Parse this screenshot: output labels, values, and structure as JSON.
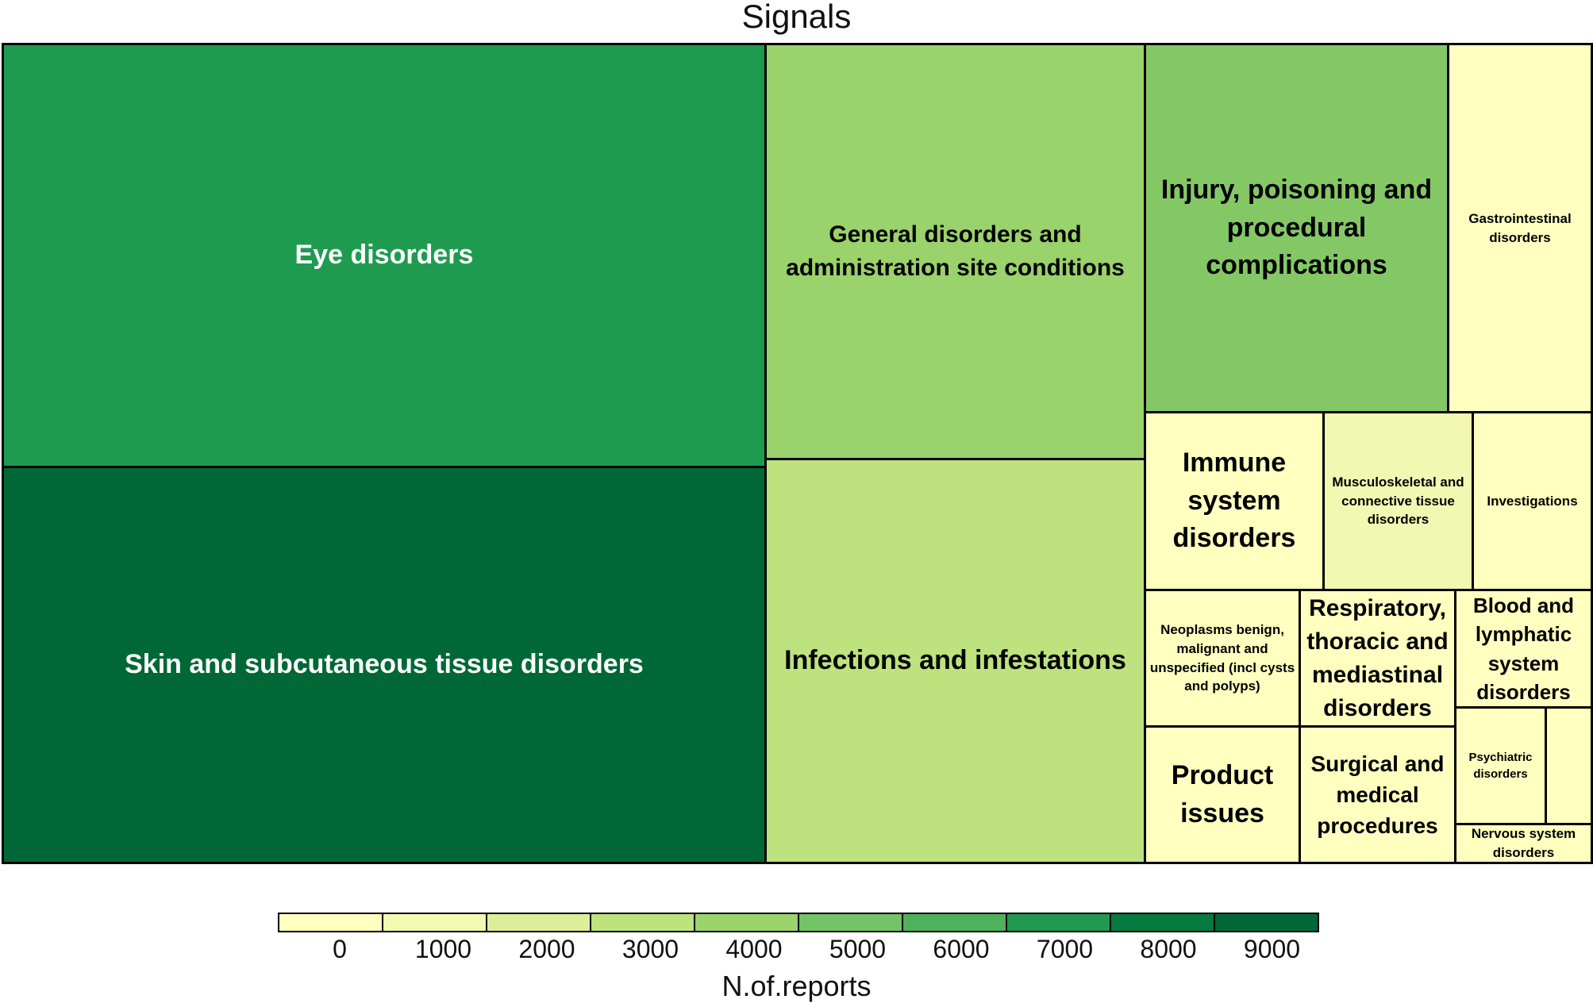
{
  "chart_data": {
    "type": "treemap",
    "title": "Signals",
    "color_scale": {
      "label": "N.of.reports",
      "ticks": [
        "0",
        "1000",
        "2000",
        "3000",
        "4000",
        "5000",
        "6000",
        "7000",
        "8000",
        "9000"
      ],
      "colors": [
        "#ffffc0",
        "#f2f9b3",
        "#dbef9a",
        "#bde27e",
        "#9bd36c",
        "#74c366",
        "#4fb15b",
        "#22994e",
        "#067a3f",
        "#006837"
      ]
    },
    "tiles": [
      {
        "label": "Eye disorders",
        "reports": 7000,
        "color": "#1e9b4f",
        "text_color": "#ffffff"
      },
      {
        "label": "Skin and subcutaneous tissue disorders",
        "reports": 9000,
        "color": "#006837",
        "text_color": "#ffffff"
      },
      {
        "label": "General disorders and administration site conditions",
        "reports": 3800,
        "color": "#9ad26b",
        "text_color": "#000000"
      },
      {
        "label": "Infections and infestations",
        "reports": 2900,
        "color": "#bde27e",
        "text_color": "#000000"
      },
      {
        "label": "Injury, poisoning and procedural complications",
        "reports": 4300,
        "color": "#84c866",
        "text_color": "#000000"
      },
      {
        "label": "Gastrointestinal disorders",
        "reports": 100,
        "color": "#ffffc0",
        "text_color": "#000000"
      },
      {
        "label": "Immune system disorders",
        "reports": 100,
        "color": "#ffffc0",
        "text_color": "#000000"
      },
      {
        "label": "Musculoskeletal and connective tissue disorders",
        "reports": 900,
        "color": "#f1f8b2",
        "text_color": "#000000"
      },
      {
        "label": "Investigations",
        "reports": 100,
        "color": "#ffffc0",
        "text_color": "#000000"
      },
      {
        "label": "Neoplasms benign, malignant and unspecified (incl cysts and polyps)",
        "reports": 100,
        "color": "#ffffc0",
        "text_color": "#000000"
      },
      {
        "label": "Respiratory, thoracic and mediastinal disorders",
        "reports": 100,
        "color": "#ffffc0",
        "text_color": "#000000"
      },
      {
        "label": "Blood and lymphatic system disorders",
        "reports": 100,
        "color": "#ffffc0",
        "text_color": "#000000"
      },
      {
        "label": "Product issues",
        "reports": 100,
        "color": "#ffffc0",
        "text_color": "#000000"
      },
      {
        "label": "Surgical and medical procedures",
        "reports": 100,
        "color": "#ffffc0",
        "text_color": "#000000"
      },
      {
        "label": "Psychiatric disorders",
        "reports": 100,
        "color": "#ffffc0",
        "text_color": "#000000"
      },
      {
        "label": "",
        "reports": 100,
        "color": "#ffffc0",
        "text_color": "#000000"
      },
      {
        "label": "Nervous system disorders",
        "reports": 100,
        "color": "#ffffc0",
        "text_color": "#000000"
      }
    ]
  }
}
